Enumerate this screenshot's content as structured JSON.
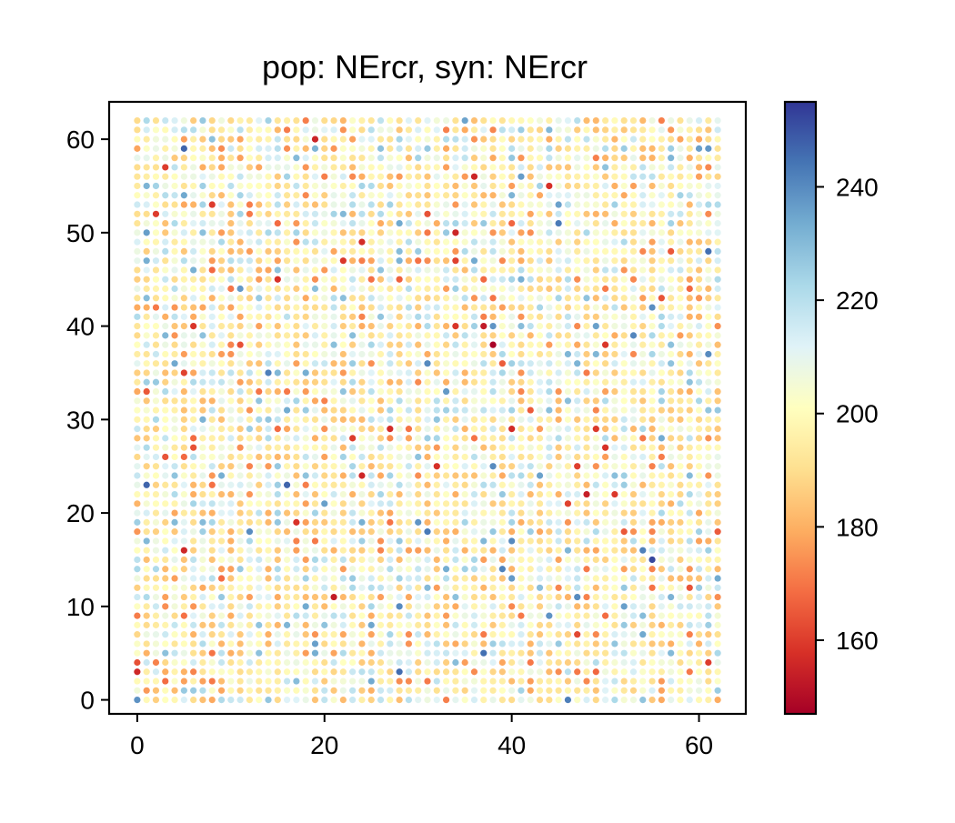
{
  "chart_data": {
    "type": "scatter",
    "title": "pop: NErcr, syn: NErcr",
    "xlabel": "",
    "ylabel": "",
    "xlim": [
      -3,
      65
    ],
    "ylim": [
      -1.5,
      64
    ],
    "x_ticks": [
      0,
      20,
      40,
      60
    ],
    "y_ticks": [
      0,
      10,
      20,
      30,
      40,
      50,
      60
    ],
    "grid": false,
    "legend": "none",
    "grid_size": [
      63,
      63
    ],
    "point_spacing": 1,
    "colormap": "RdYlBu",
    "colorbar": {
      "min": 147,
      "max": 255,
      "ticks": [
        160,
        180,
        200,
        220,
        240
      ],
      "position": "right"
    },
    "value_distribution": {
      "baseline": 200,
      "spread": 14,
      "seed": 7
    },
    "highlighted_points": [
      {
        "x": 38,
        "y": 38,
        "value": 148
      },
      {
        "x": 37,
        "y": 40,
        "value": 153
      },
      {
        "x": 38,
        "y": 40,
        "value": 238
      },
      {
        "x": 19,
        "y": 60,
        "value": 155
      },
      {
        "x": 24,
        "y": 49,
        "value": 157
      },
      {
        "x": 15,
        "y": 45,
        "value": 158
      },
      {
        "x": 2,
        "y": 52,
        "value": 160
      },
      {
        "x": 8,
        "y": 53,
        "value": 160
      },
      {
        "x": 17,
        "y": 19,
        "value": 158
      },
      {
        "x": 61,
        "y": 48,
        "value": 245
      },
      {
        "x": 55,
        "y": 15,
        "value": 252
      },
      {
        "x": 54,
        "y": 16,
        "value": 242
      },
      {
        "x": 38,
        "y": 25,
        "value": 240
      },
      {
        "x": 14,
        "y": 35,
        "value": 242
      },
      {
        "x": 53,
        "y": 39,
        "value": 241
      },
      {
        "x": 47,
        "y": 11,
        "value": 240
      },
      {
        "x": 30,
        "y": 19,
        "value": 238
      },
      {
        "x": 20,
        "y": 21,
        "value": 236
      },
      {
        "x": 61,
        "y": 4,
        "value": 160
      },
      {
        "x": 47,
        "y": 7,
        "value": 162
      }
    ]
  }
}
